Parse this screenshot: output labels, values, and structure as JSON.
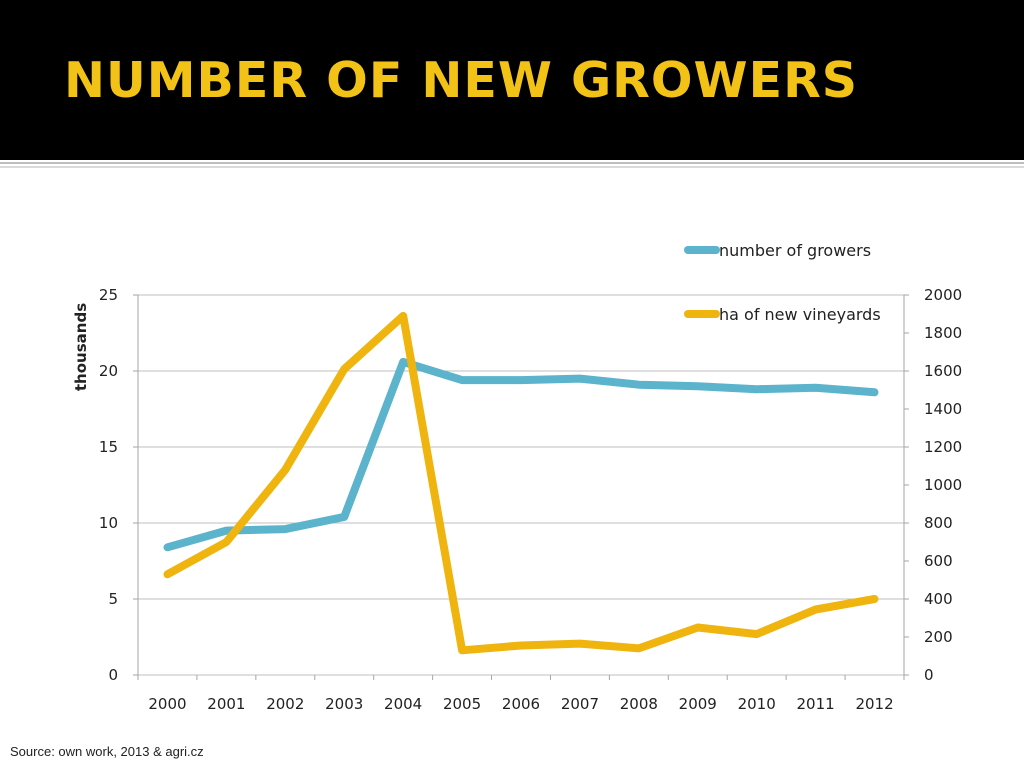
{
  "slide": {
    "title": "NUMBER OF NEW GROWERS",
    "source": "Source: own work, 2013 & agri.cz"
  },
  "colors": {
    "header_bg": "#000000",
    "title": "#f2c316",
    "growers": "#5bb3cc",
    "vineyards": "#f0b40f",
    "grid": "#bfbfbf"
  },
  "chart_data": {
    "type": "line",
    "categories": [
      "2000",
      "2001",
      "2002",
      "2003",
      "2004",
      "2005",
      "2006",
      "2007",
      "2008",
      "2009",
      "2010",
      "2011",
      "2012"
    ],
    "ylabel": "thousands",
    "y_left": {
      "range": [
        0,
        25
      ],
      "ticks": [
        "0",
        "5",
        "10",
        "15",
        "20",
        "25"
      ]
    },
    "y_right": {
      "range": [
        0,
        2000
      ],
      "ticks": [
        "0",
        "200",
        "400",
        "600",
        "800",
        "1000",
        "1200",
        "1400",
        "1600",
        "1800",
        "2000"
      ]
    },
    "grid": true,
    "legend_position": "top-right",
    "series": [
      {
        "name": "number of growers",
        "axis": "left",
        "color": "#5bb3cc",
        "values": [
          8.4,
          9.5,
          9.6,
          10.4,
          20.6,
          19.4,
          19.4,
          19.5,
          19.1,
          19.0,
          18.8,
          18.9,
          18.6
        ]
      },
      {
        "name": "ha of new vineyards",
        "axis": "right",
        "color": "#f0b40f",
        "values": [
          530,
          700,
          1080,
          1610,
          1890,
          130,
          155,
          165,
          140,
          250,
          215,
          345,
          400
        ]
      }
    ]
  }
}
